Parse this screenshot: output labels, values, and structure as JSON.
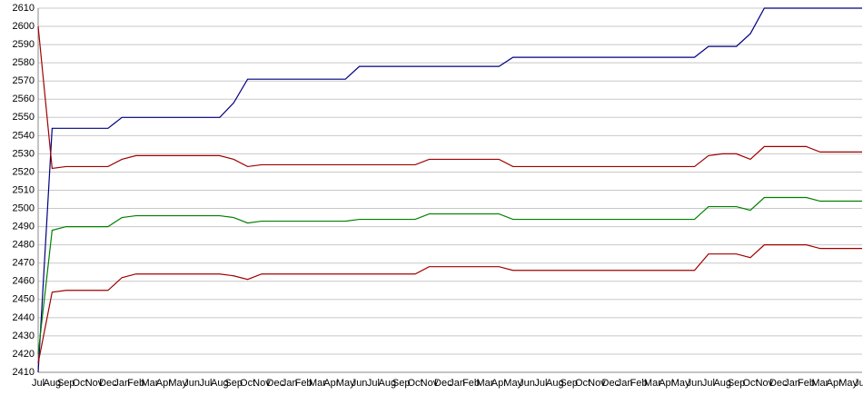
{
  "chart_data": {
    "type": "line",
    "categories": [
      "Jul",
      "Aug",
      "Sep",
      "Oct",
      "Nov",
      "Dec",
      "Jan",
      "Feb",
      "Mar",
      "Apr",
      "May",
      "Jun",
      "Jul",
      "Aug",
      "Sep",
      "Oct",
      "Nov",
      "Dec",
      "Jan",
      "Feb",
      "Mar",
      "Apr",
      "May",
      "Jun",
      "Jul",
      "Aug",
      "Sep",
      "Oct",
      "Nov",
      "Dec",
      "Jan",
      "Feb",
      "Mar",
      "Apr",
      "May",
      "Jun",
      "Jul",
      "Aug",
      "Sep",
      "Oct",
      "Nov",
      "Dec",
      "Jan",
      "Feb",
      "Mar",
      "Apr",
      "May",
      "Jun",
      "Jul",
      "Aug",
      "Sep",
      "Oct",
      "Nov",
      "Dec",
      "Jan",
      "Feb",
      "Mar",
      "Apr",
      "May",
      "Jun"
    ],
    "series": [
      {
        "color": "#000080",
        "values": [
          2410,
          2544,
          2544,
          2544,
          2544,
          2544,
          2550,
          2550,
          2550,
          2550,
          2550,
          2550,
          2550,
          2550,
          2558,
          2571,
          2571,
          2571,
          2571,
          2571,
          2571,
          2571,
          2571,
          2578,
          2578,
          2578,
          2578,
          2578,
          2578,
          2578,
          2578,
          2578,
          2578,
          2578,
          2583,
          2583,
          2583,
          2583,
          2583,
          2583,
          2583,
          2583,
          2583,
          2583,
          2583,
          2583,
          2583,
          2583,
          2589,
          2589,
          2589,
          2596,
          2610,
          2610,
          2610,
          2610,
          2610,
          2610,
          2610,
          2610
        ]
      },
      {
        "color": "#a00000",
        "values": [
          2600,
          2522,
          2523,
          2523,
          2523,
          2523,
          2527,
          2529,
          2529,
          2529,
          2529,
          2529,
          2529,
          2529,
          2527,
          2523,
          2524,
          2524,
          2524,
          2524,
          2524,
          2524,
          2524,
          2524,
          2524,
          2524,
          2524,
          2524,
          2527,
          2527,
          2527,
          2527,
          2527,
          2527,
          2523,
          2523,
          2523,
          2523,
          2523,
          2523,
          2523,
          2523,
          2523,
          2523,
          2523,
          2523,
          2523,
          2523,
          2529,
          2530,
          2530,
          2527,
          2534,
          2534,
          2534,
          2534,
          2531,
          2531,
          2531,
          2531
        ]
      },
      {
        "color": "#008000",
        "values": [
          2420,
          2488,
          2490,
          2490,
          2490,
          2490,
          2495,
          2496,
          2496,
          2496,
          2496,
          2496,
          2496,
          2496,
          2495,
          2492,
          2493,
          2493,
          2493,
          2493,
          2493,
          2493,
          2493,
          2494,
          2494,
          2494,
          2494,
          2494,
          2497,
          2497,
          2497,
          2497,
          2497,
          2497,
          2494,
          2494,
          2494,
          2494,
          2494,
          2494,
          2494,
          2494,
          2494,
          2494,
          2494,
          2494,
          2494,
          2494,
          2501,
          2501,
          2501,
          2499,
          2506,
          2506,
          2506,
          2506,
          2504,
          2504,
          2504,
          2504
        ]
      },
      {
        "color": "#a00000",
        "values": [
          2415,
          2454,
          2455,
          2455,
          2455,
          2455,
          2462,
          2464,
          2464,
          2464,
          2464,
          2464,
          2464,
          2464,
          2463,
          2461,
          2464,
          2464,
          2464,
          2464,
          2464,
          2464,
          2464,
          2464,
          2464,
          2464,
          2464,
          2464,
          2468,
          2468,
          2468,
          2468,
          2468,
          2468,
          2466,
          2466,
          2466,
          2466,
          2466,
          2466,
          2466,
          2466,
          2466,
          2466,
          2466,
          2466,
          2466,
          2466,
          2475,
          2475,
          2475,
          2473,
          2480,
          2480,
          2480,
          2480,
          2478,
          2478,
          2478,
          2478
        ]
      }
    ],
    "ylim": [
      2410,
      2610
    ],
    "yticks": [
      2410,
      2420,
      2430,
      2440,
      2450,
      2460,
      2470,
      2480,
      2490,
      2500,
      2510,
      2520,
      2530,
      2540,
      2550,
      2560,
      2570,
      2580,
      2590,
      2600,
      2610
    ],
    "grid": true
  }
}
